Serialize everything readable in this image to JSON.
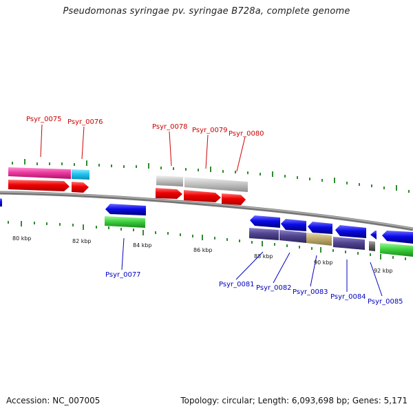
{
  "title": "Pseudomonas syringae pv. syringae B728a, complete genome",
  "accession_text": "Accession: NC_007005",
  "topology_text": "Topology: circular; Length: 6,093,698 bp; Genes: 5,171",
  "colors": {
    "top_labels": "#cc0000",
    "bottom_labels": "#0000bb",
    "ticks": "#2e8b2e",
    "backbone": "#777777"
  },
  "kbp_labels": [
    "80 kbp",
    "82 kbp",
    "84 kbp",
    "86 kbp",
    "88 kbp",
    "90 kbp",
    "92 kbp"
  ],
  "genes_top": [
    "Psyr_0075",
    "Psyr_0076",
    "Psyr_0078",
    "Psyr_0079",
    "Psyr_0080"
  ],
  "genes_bottom": [
    "Psyr_0077",
    "Psyr_0081",
    "Psyr_0082",
    "Psyr_0083",
    "Psyr_0084",
    "Psyr_0085"
  ]
}
